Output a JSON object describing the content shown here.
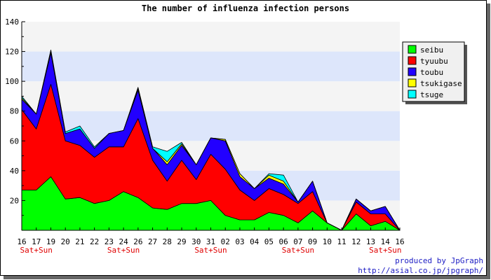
{
  "chart_data": {
    "type": "area",
    "stacked": true,
    "title": "The number of influenza infection persons",
    "x": [
      "16",
      "17",
      "19",
      "20",
      "21",
      "22",
      "23",
      "24",
      "26",
      "27",
      "28",
      "29",
      "30",
      "31",
      "02",
      "03",
      "04",
      "05",
      "06",
      "07",
      "09",
      "10",
      "11",
      "12",
      "13",
      "14",
      "16"
    ],
    "weekend_labels": [
      {
        "index": 1,
        "text": "Sat+Sun"
      },
      {
        "index": 7,
        "text": "Sat+Sun"
      },
      {
        "index": 13,
        "text": "Sat+Sun"
      },
      {
        "index": 19,
        "text": "Sat+Sun"
      },
      {
        "index": 25,
        "text": "Sat+Sun"
      }
    ],
    "series": [
      {
        "name": "seibu",
        "color": "#00ff00",
        "values": [
          27,
          27,
          36,
          21,
          22,
          18,
          20,
          26,
          22,
          15,
          14,
          18,
          18,
          20,
          10,
          7,
          7,
          12,
          10,
          5,
          13,
          5,
          0,
          11,
          3,
          6,
          0
        ]
      },
      {
        "name": "tyuubu",
        "color": "#ff0000",
        "values": [
          54,
          41,
          62,
          39,
          35,
          31,
          36,
          30,
          53,
          32,
          19,
          29,
          16,
          31,
          31,
          20,
          13,
          16,
          14,
          13,
          13,
          0,
          0,
          8,
          8,
          5,
          0
        ]
      },
      {
        "name": "toubu",
        "color": "#2200ff",
        "values": [
          7,
          10,
          21,
          5,
          11,
          6,
          9,
          11,
          19,
          8,
          11,
          10,
          10,
          11,
          19,
          9,
          8,
          7,
          7,
          1,
          7,
          0,
          0,
          2,
          2,
          5,
          0
        ]
      },
      {
        "name": "tsukigase",
        "color": "#ffff00",
        "values": [
          1,
          0,
          1,
          0,
          0,
          0,
          0,
          0,
          1,
          0,
          2,
          1,
          0,
          0,
          1,
          2,
          0,
          2,
          2,
          0,
          0,
          0,
          0,
          0,
          0,
          0,
          0
        ]
      },
      {
        "name": "tsuge",
        "color": "#00ffff",
        "values": [
          1,
          0,
          1,
          1,
          2,
          1,
          0,
          0,
          1,
          1,
          7,
          1,
          0,
          0,
          0,
          0,
          0,
          1,
          4,
          0,
          0,
          0,
          0,
          0,
          0,
          0,
          0
        ]
      }
    ],
    "ylim": [
      0,
      140
    ],
    "yticks": [
      20,
      40,
      60,
      80,
      100,
      120,
      140
    ],
    "grid": "horizontal bands",
    "legend_position": "right"
  },
  "credits": {
    "line1": "produced by JpGraph",
    "line2": "http://asial.co.jp/jpgraph/"
  }
}
